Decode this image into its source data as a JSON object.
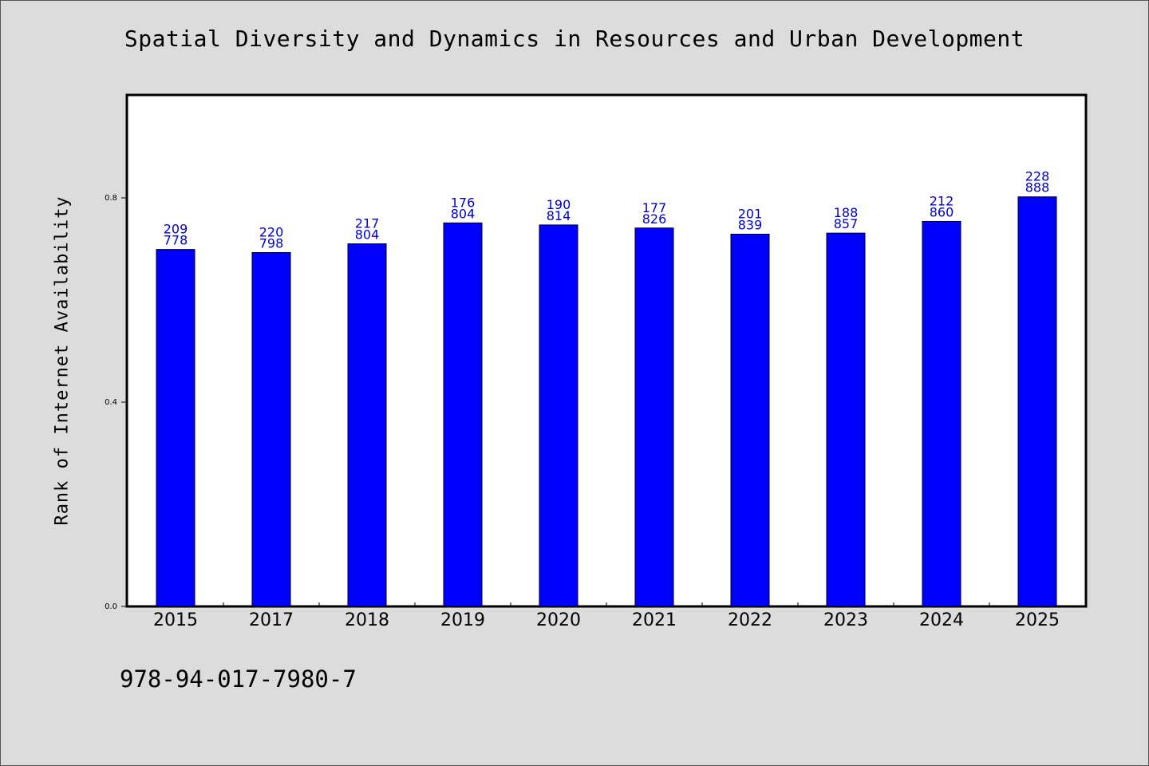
{
  "isbn": "978-94-017-7980-7",
  "chart_data": {
    "type": "bar",
    "title": "Spatial Diversity and Dynamics in Resources and Urban Development",
    "xlabel": "",
    "ylabel": "Rank of Internet Availability",
    "categories": [
      "2015",
      "2017",
      "2018",
      "2019",
      "2020",
      "2021",
      "2022",
      "2023",
      "2024",
      "2025"
    ],
    "series": [
      {
        "values": [
          0.699,
          0.693,
          0.71,
          0.751,
          0.747,
          0.741,
          0.729,
          0.731,
          0.754,
          0.802
        ],
        "color": "#0000ff",
        "data_labels": [
          [
            "209",
            "778"
          ],
          [
            "220",
            "798"
          ],
          [
            "217",
            "804"
          ],
          [
            "176",
            "804"
          ],
          [
            "190",
            "814"
          ],
          [
            "177",
            "826"
          ],
          [
            "201",
            "839"
          ],
          [
            "188",
            "857"
          ],
          [
            "212",
            "860"
          ],
          [
            "228",
            "888"
          ]
        ]
      }
    ],
    "ylim": [
      0,
      1.0
    ],
    "yticks": [
      0.0,
      0.4,
      0.8
    ],
    "ytick_labels": [
      "0.0",
      "0.4",
      "0.8"
    ],
    "grid": false,
    "legend": "none"
  }
}
